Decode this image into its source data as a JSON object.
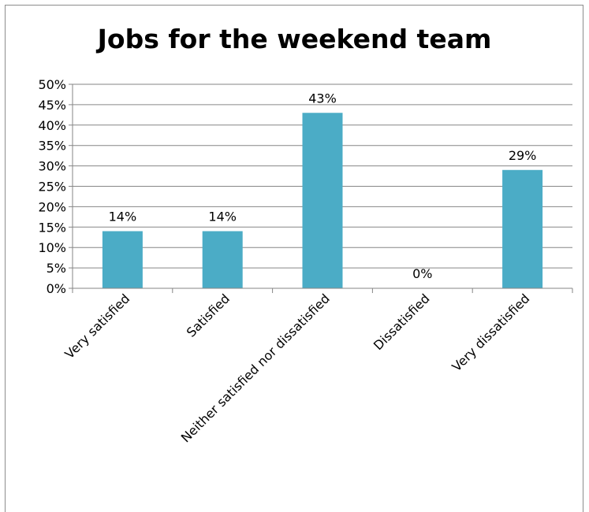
{
  "chart_data": {
    "type": "bar",
    "title": "Jobs for the weekend team",
    "categories": [
      "Very satisfied",
      "Satisfied",
      "Neither satisfied nor dissatisfied",
      "Dissatisfied",
      "Very dissatisfied"
    ],
    "values": [
      14,
      14,
      43,
      0,
      29
    ],
    "data_labels": [
      "14%",
      "14%",
      "43%",
      "0%",
      "29%"
    ],
    "ylim": [
      0,
      50
    ],
    "y_ticks": [
      0,
      5,
      10,
      15,
      20,
      25,
      30,
      35,
      40,
      45,
      50
    ],
    "y_tick_labels": [
      "0%",
      "5%",
      "10%",
      "15%",
      "20%",
      "25%",
      "30%",
      "35%",
      "40%",
      "45%",
      "50%"
    ],
    "grid": true,
    "legend": false,
    "bar_color": "#4bacc6",
    "grid_color": "#868686"
  }
}
